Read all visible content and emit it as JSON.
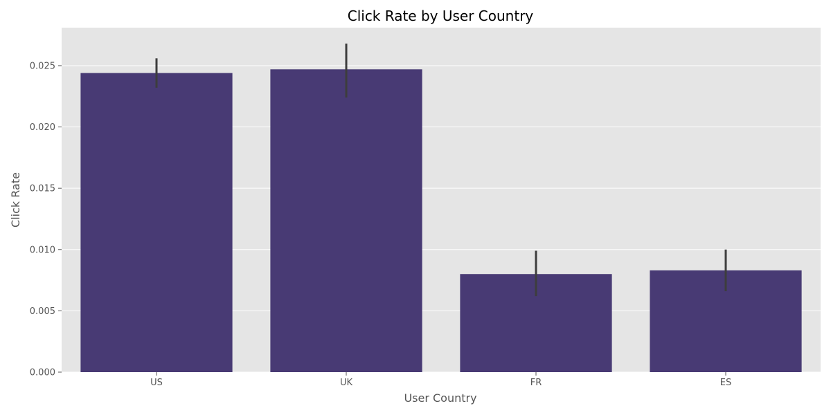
{
  "colors": {
    "bar": "#483a74",
    "plot_bg": "#e5e5e5",
    "grid": "#ffffff",
    "error_bar": "#3d3d3d",
    "tick": "#555555"
  },
  "chart_data": {
    "type": "bar",
    "title": "Click Rate by User Country",
    "xlabel": "User Country",
    "ylabel": "Click Rate",
    "categories": [
      "US",
      "UK",
      "FR",
      "ES"
    ],
    "values": [
      0.0244,
      0.0247,
      0.008,
      0.0083
    ],
    "error_low": [
      0.0232,
      0.0224,
      0.0062,
      0.0066
    ],
    "error_high": [
      0.0256,
      0.0268,
      0.0099,
      0.01
    ],
    "ylim": [
      0,
      0.0281
    ],
    "yticks": [
      0.0,
      0.005,
      0.01,
      0.015,
      0.02,
      0.025
    ],
    "ytick_labels": [
      "0.000",
      "0.005",
      "0.010",
      "0.015",
      "0.020",
      "0.025"
    ],
    "grid": true,
    "legend": false
  }
}
